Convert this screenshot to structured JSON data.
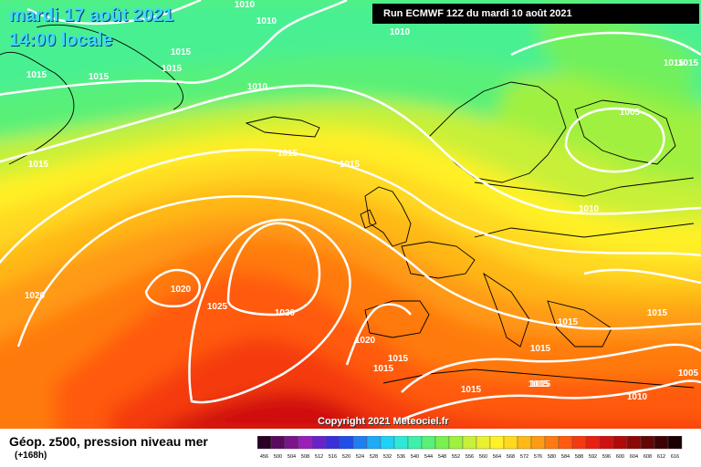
{
  "header": {
    "date": "mardi 17 août 2021",
    "time": "14:00 locale",
    "run": "Run ECMWF 12Z du mardi 10 août 2021"
  },
  "copyright": "Copyright 2021 Meteociel.fr",
  "legend": {
    "title": "Géop. z500, pression niveau mer",
    "subtitle": "(+168h)",
    "scale_values": [
      "456",
      "500",
      "504",
      "508",
      "512",
      "516",
      "520",
      "524",
      "528",
      "532",
      "536",
      "540",
      "544",
      "548",
      "552",
      "556",
      "560",
      "564",
      "568",
      "572",
      "576",
      "580",
      "584",
      "588",
      "592",
      "596",
      "600",
      "604",
      "608",
      "612",
      "616"
    ],
    "scale_colors": [
      "#2a0024",
      "#5a0a5e",
      "#7a148a",
      "#9a1eb8",
      "#6a22c8",
      "#3a2ed8",
      "#1f4ee8",
      "#1f7ef0",
      "#1faaf5",
      "#20d0f5",
      "#30e8d8",
      "#40f0a8",
      "#58f078",
      "#78f050",
      "#a0f040",
      "#c8f038",
      "#e8f030",
      "#fff028",
      "#ffd820",
      "#ffb818",
      "#ff9a14",
      "#ff7a10",
      "#ff5a10",
      "#f53a10",
      "#e82010",
      "#d01010",
      "#b00a0a",
      "#8a0808",
      "#640606",
      "#3c0404",
      "#1a0000"
    ]
  },
  "isobar_labels": [
    "1010",
    "1010",
    "1010",
    "1010",
    "1015",
    "1015",
    "1015",
    "1015",
    "1015",
    "1015",
    "1015",
    "1005",
    "1010",
    "1020",
    "1025",
    "1030",
    "1020",
    "1015",
    "1015",
    "1015",
    "1015",
    "1015",
    "1015",
    "1015",
    "1020",
    "1015",
    "1015",
    "1005",
    "1010",
    "1015"
  ],
  "colors": {
    "date_text": "#3fd7ff",
    "isobar": "#ffffff",
    "coastline": "#000000"
  }
}
